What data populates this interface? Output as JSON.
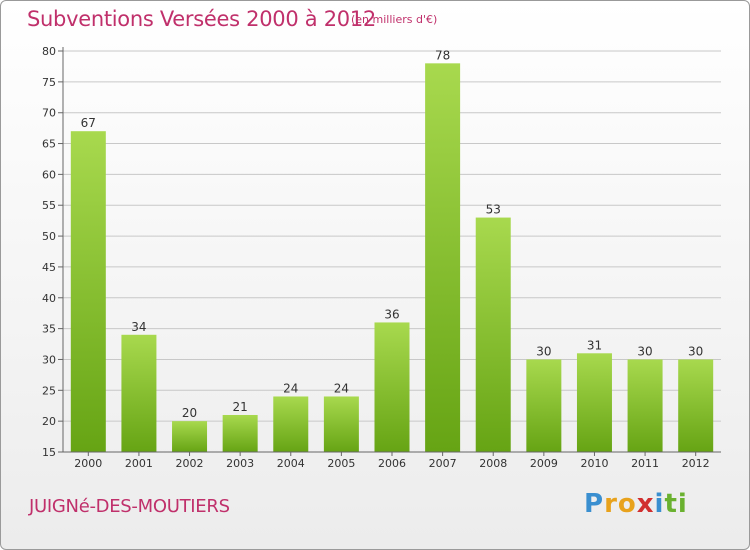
{
  "header": {
    "title": "Subventions Versées 2000 à 2012",
    "units": "(en milliers d'€)"
  },
  "footer": {
    "place": "JUIGNé-DES-MOUTIERS",
    "logo_letters": [
      "P",
      "r",
      "o",
      "x",
      "i",
      "t",
      "i"
    ],
    "logo_colors": [
      "#3a8fd0",
      "#e8a21c",
      "#e8a21c",
      "#d12f2f",
      "#3a8fd0",
      "#6ab12f",
      "#6ab12f"
    ]
  },
  "colors": {
    "bar_light": "#a8d94e",
    "bar_dark": "#66a414",
    "grid": "#c8c8c8",
    "axis": "#666666"
  },
  "chart_data": {
    "type": "bar",
    "categories": [
      "2000",
      "2001",
      "2002",
      "2003",
      "2004",
      "2005",
      "2006",
      "2007",
      "2008",
      "2009",
      "2010",
      "2011",
      "2012"
    ],
    "values": [
      67,
      34,
      20,
      21,
      24,
      24,
      36,
      78,
      53,
      30,
      31,
      30,
      30
    ],
    "value_labels": [
      "67",
      "34",
      "20",
      "21",
      "24",
      "24",
      "36",
      "78",
      "53",
      "30",
      "31",
      "30",
      "30"
    ],
    "ylim": [
      15,
      80
    ],
    "yticks": [
      15,
      20,
      25,
      30,
      35,
      40,
      45,
      50,
      55,
      60,
      65,
      70,
      75,
      80
    ],
    "ytick_labels": [
      "15",
      "20",
      "25",
      "30",
      "35",
      "40",
      "45",
      "50",
      "55",
      "60",
      "65",
      "70",
      "75",
      "80"
    ],
    "grid": true
  }
}
